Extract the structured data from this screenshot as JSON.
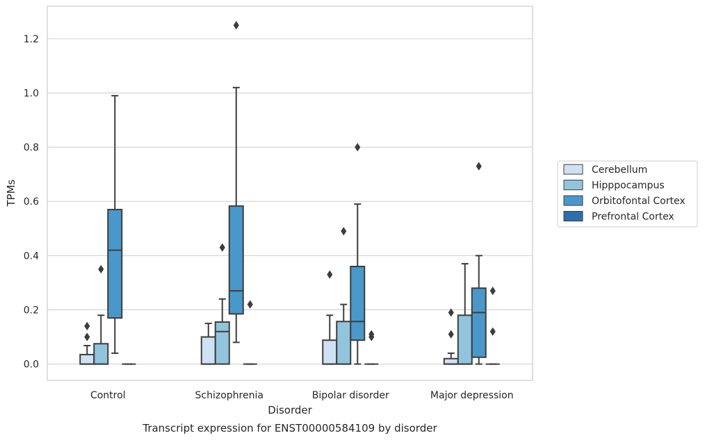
{
  "chart_data": {
    "type": "box",
    "caption": "Transcript expression for ENST00000584109 by disorder",
    "xlabel": "Disorder",
    "ylabel": "TPMs",
    "ylim": [
      -0.06,
      1.32
    ],
    "yticks": [
      "0.0",
      "0.2",
      "0.4",
      "0.6",
      "0.8",
      "1.0",
      "1.2"
    ],
    "ytick_values": [
      0,
      0.2,
      0.4,
      0.6,
      0.8,
      1.0,
      1.2
    ],
    "grid": true,
    "legend_position": "right",
    "categories": [
      "Control",
      "Schizophrenia",
      "Bipolar disorder",
      "Major depression"
    ],
    "series": [
      {
        "name": "Cerebellum",
        "color": "#cfe1f2",
        "boxes": [
          {
            "whisker_low": 0,
            "q1": 0,
            "median": 0,
            "q3": 0.035,
            "whisker_high": 0.068,
            "outliers": [
              0.1,
              0.14
            ]
          },
          {
            "whisker_low": 0,
            "q1": 0,
            "median": 0,
            "q3": 0.1,
            "whisker_high": 0.15,
            "outliers": []
          },
          {
            "whisker_low": 0,
            "q1": 0,
            "median": 0,
            "q3": 0.088,
            "whisker_high": 0.18,
            "outliers": [
              0.33
            ]
          },
          {
            "whisker_low": 0,
            "q1": 0,
            "median": 0,
            "q3": 0.02,
            "whisker_high": 0.04,
            "outliers": [
              0.11,
              0.19
            ]
          }
        ]
      },
      {
        "name": "Hipppocampus",
        "color": "#93c4de",
        "boxes": [
          {
            "whisker_low": 0,
            "q1": 0,
            "median": 0,
            "q3": 0.075,
            "whisker_high": 0.18,
            "outliers": [
              0.35
            ]
          },
          {
            "whisker_low": 0,
            "q1": 0,
            "median": 0.12,
            "q3": 0.155,
            "whisker_high": 0.24,
            "outliers": [
              0.43
            ]
          },
          {
            "whisker_low": 0,
            "q1": 0,
            "median": 0,
            "q3": 0.157,
            "whisker_high": 0.22,
            "outliers": [
              0.49
            ]
          },
          {
            "whisker_low": 0,
            "q1": 0,
            "median": 0,
            "q3": 0.18,
            "whisker_high": 0.37,
            "outliers": []
          }
        ]
      },
      {
        "name": "Orbitofontal Cortex",
        "color": "#4a98c9",
        "boxes": [
          {
            "whisker_low": 0.04,
            "q1": 0.17,
            "median": 0.42,
            "q3": 0.57,
            "whisker_high": 0.99,
            "outliers": []
          },
          {
            "whisker_low": 0.08,
            "q1": 0.185,
            "median": 0.27,
            "q3": 0.583,
            "whisker_high": 1.02,
            "outliers": [
              1.25
            ]
          },
          {
            "whisker_low": 0,
            "q1": 0.088,
            "median": 0.157,
            "q3": 0.36,
            "whisker_high": 0.59,
            "outliers": [
              0.8
            ]
          },
          {
            "whisker_low": 0,
            "q1": 0.025,
            "median": 0.19,
            "q3": 0.28,
            "whisker_high": 0.4,
            "outliers": [
              0.73
            ]
          }
        ]
      },
      {
        "name": "Prefrontal Cortex",
        "color": "#2e6fab",
        "boxes": [
          {
            "whisker_low": 0,
            "q1": 0,
            "median": 0,
            "q3": 0,
            "whisker_high": 0,
            "outliers": []
          },
          {
            "whisker_low": 0,
            "q1": 0,
            "median": 0,
            "q3": 0,
            "whisker_high": 0,
            "outliers": [
              0.22
            ]
          },
          {
            "whisker_low": 0,
            "q1": 0,
            "median": 0,
            "q3": 0,
            "whisker_high": 0,
            "outliers": [
              0.1,
              0.11
            ]
          },
          {
            "whisker_low": 0,
            "q1": 0,
            "median": 0,
            "q3": 0,
            "whisker_high": 0,
            "outliers": [
              0.12,
              0.27
            ]
          }
        ]
      }
    ]
  }
}
